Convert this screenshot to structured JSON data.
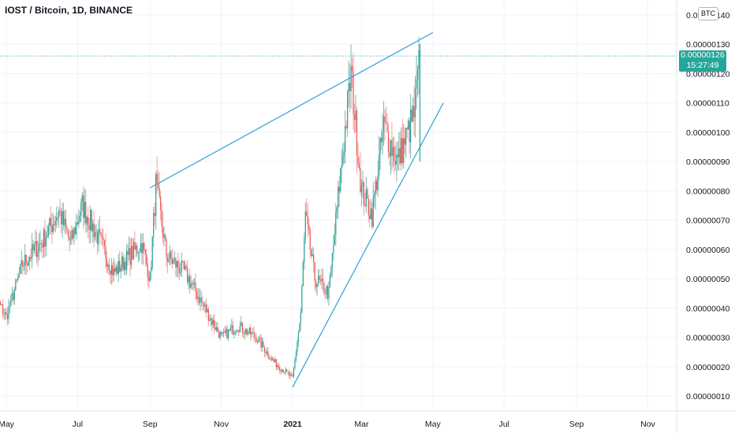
{
  "header": {
    "title": "IOST / Bitcoin, 1D, BINANCE"
  },
  "currency_badge": "BTC",
  "last_price": {
    "value": "0.00000126",
    "countdown": "15:27:49"
  },
  "colors": {
    "up": "#26a69a",
    "down": "#ef5350",
    "wick_up": "#7fb7ae",
    "wick_down": "#f0a0a0",
    "trendline": "#2ea0d8",
    "price_line": "#26a69a"
  },
  "chart_data": {
    "type": "candlestick",
    "title": "IOST / Bitcoin, 1D, BINANCE",
    "x_tick_labels": [
      "May",
      "Jul",
      "Sep",
      "Nov",
      "2021",
      "Mar",
      "May",
      "Jul",
      "Sep",
      "Nov"
    ],
    "y_tick_labels": [
      "0.00000010",
      "0.00000020",
      "0.00000030",
      "0.00000040",
      "0.00000050",
      "0.00000060",
      "0.00000070",
      "0.00000080",
      "0.00000090",
      "0.00000100",
      "0.00000110",
      "0.00000120",
      "0.00000130",
      "0.00000140"
    ],
    "ylim": [
      7e-08,
      1.43e-06
    ],
    "series_close": [
      [
        "2020-04-15",
        4.8e-07
      ],
      [
        "2020-05-01",
        3.7e-07
      ],
      [
        "2020-05-15",
        5.5e-07
      ],
      [
        "2020-06-01",
        6.3e-07
      ],
      [
        "2020-06-15",
        7.3e-07
      ],
      [
        "2020-06-25",
        6.2e-07
      ],
      [
        "2020-07-05",
        7.5e-07
      ],
      [
        "2020-07-20",
        6.3e-07
      ],
      [
        "2020-08-01",
        5.2e-07
      ],
      [
        "2020-08-15",
        5.8e-07
      ],
      [
        "2020-08-25",
        6.2e-07
      ],
      [
        "2020-09-01",
        5e-07
      ],
      [
        "2020-09-06",
        8.2e-07
      ],
      [
        "2020-09-15",
        5.8e-07
      ],
      [
        "2020-10-01",
        5.2e-07
      ],
      [
        "2020-10-15",
        4.2e-07
      ],
      [
        "2020-11-01",
        3e-07
      ],
      [
        "2020-11-15",
        3.4e-07
      ],
      [
        "2020-12-01",
        3e-07
      ],
      [
        "2020-12-15",
        2.2e-07
      ],
      [
        "2021-01-01",
        1.6e-07
      ],
      [
        "2021-01-08",
        3.8e-07
      ],
      [
        "2021-01-12",
        7.1e-07
      ],
      [
        "2021-01-20",
        5e-07
      ],
      [
        "2021-02-01",
        4.5e-07
      ],
      [
        "2021-02-10",
        8.2e-07
      ],
      [
        "2021-02-20",
        1.2e-06
      ],
      [
        "2021-03-01",
        8e-07
      ],
      [
        "2021-03-10",
        7.2e-07
      ],
      [
        "2021-03-20",
        1.02e-06
      ],
      [
        "2021-04-01",
        9e-07
      ],
      [
        "2021-04-15",
        1.06e-06
      ],
      [
        "2021-04-20",
        1.26e-06
      ]
    ],
    "trendlines": [
      {
        "from": [
          "2020-09-01",
          8.1e-07
        ],
        "to": [
          "2021-05-01",
          1.34e-06
        ]
      },
      {
        "from": [
          "2021-01-01",
          1.3e-07
        ],
        "to": [
          "2021-05-10",
          1.1e-06
        ]
      }
    ],
    "last_value": 1.26e-06,
    "grid": true,
    "legend": "none"
  }
}
